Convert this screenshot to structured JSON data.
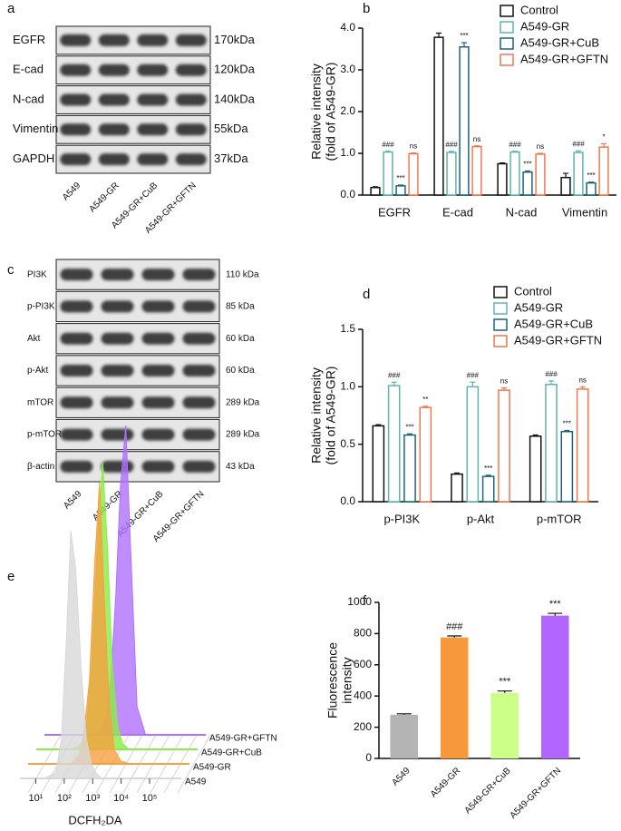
{
  "blots": [
    {
      "panel": "a",
      "rows": [
        {
          "label": "EGFR",
          "size": "170kDa"
        },
        {
          "label": "E-cad",
          "size": "120kDa"
        },
        {
          "label": "N-cad",
          "size": "140kDa"
        },
        {
          "label": "Vimentin",
          "size": "55kDa"
        },
        {
          "label": "GAPDH",
          "size": "37kDa"
        }
      ],
      "lanes": [
        "A549",
        "A549-GR",
        "A549-GR+CuB",
        "A549-GR+GFTN"
      ]
    },
    {
      "panel": "c",
      "rows": [
        {
          "label": "PI3K",
          "size": "110 kDa"
        },
        {
          "label": "p-PI3K",
          "size": "85 kDa"
        },
        {
          "label": "Akt",
          "size": "60 kDa"
        },
        {
          "label": "p-Akt",
          "size": "60 kDa"
        },
        {
          "label": "mTOR",
          "size": "289 kDa"
        },
        {
          "label": "p-mTOR",
          "size": "289 kDa"
        },
        {
          "label": "β-actin",
          "size": "43 kDa"
        }
      ],
      "lanes": [
        "A549",
        "A549-GR",
        "A549-GR+CuB",
        "A549-GR+GFTN"
      ]
    }
  ],
  "chart_data": [
    {
      "type": "bar",
      "panel": "b",
      "ylabel": [
        "Relative intensity",
        "(fold of A549-GR)"
      ],
      "categories": [
        "EGFR",
        "E-cad",
        "N-cad",
        "Vimentin"
      ],
      "series": [
        {
          "name": "Control",
          "color": "#111111",
          "values": [
            0.18,
            3.78,
            0.75,
            0.42
          ],
          "errors": [
            0.02,
            0.1,
            0.02,
            0.1
          ]
        },
        {
          "name": "A549-GR",
          "color": "#5fb3b3",
          "values": [
            1.03,
            1.02,
            1.03,
            1.02
          ],
          "errors": [
            0.02,
            0.03,
            0.02,
            0.04
          ],
          "annotations": [
            "###",
            "###",
            "###",
            "###"
          ]
        },
        {
          "name": "A549-GR+CuB",
          "color": "#1b6478",
          "values": [
            0.22,
            3.55,
            0.55,
            0.29
          ],
          "errors": [
            0.02,
            0.1,
            0.03,
            0.02
          ],
          "annotations": [
            "***",
            "***",
            "***",
            "***"
          ]
        },
        {
          "name": "A549-GR+GFTN",
          "color": "#f07850",
          "values": [
            0.99,
            1.16,
            0.98,
            1.15
          ],
          "errors": [
            0.02,
            0.02,
            0.02,
            0.08
          ],
          "annotations": [
            "ns",
            "ns",
            "ns",
            "*"
          ]
        }
      ],
      "ylim": [
        0,
        4
      ],
      "yticks": [
        {
          "value": 0,
          "label": "0.0"
        },
        {
          "value": 1,
          "label": "1.0"
        },
        {
          "value": 2,
          "label": "2.0"
        },
        {
          "value": 3,
          "label": "3.0"
        },
        {
          "value": 4,
          "label": "4.0"
        }
      ],
      "legend": "upper right"
    },
    {
      "type": "bar",
      "panel": "d",
      "ylabel": [
        "Relative intensity",
        "(fold of A549-GR)"
      ],
      "categories": [
        "p-PI3K",
        "p-Akt",
        "p-mTOR"
      ],
      "series": [
        {
          "name": "Control",
          "color": "#111111",
          "values": [
            0.66,
            0.24,
            0.57
          ],
          "errors": [
            0.01,
            0.01,
            0.01
          ]
        },
        {
          "name": "A549-GR",
          "color": "#5fb3b3",
          "values": [
            1.01,
            1.0,
            1.02
          ],
          "errors": [
            0.03,
            0.04,
            0.03
          ],
          "annotations": [
            "###",
            "###",
            "###"
          ]
        },
        {
          "name": "A549-GR+CuB",
          "color": "#1b6478",
          "values": [
            0.58,
            0.22,
            0.61
          ],
          "errors": [
            0.01,
            0.01,
            0.01
          ],
          "annotations": [
            "***",
            "***",
            "***"
          ]
        },
        {
          "name": "A549-GR+GFTN",
          "color": "#f07850",
          "values": [
            0.82,
            0.97,
            0.98
          ],
          "errors": [
            0.01,
            0.02,
            0.02
          ],
          "annotations": [
            "**",
            "ns",
            "ns"
          ]
        }
      ],
      "ylim": [
        0,
        1.5
      ],
      "yticks": [
        {
          "value": 0,
          "label": "0.0"
        },
        {
          "value": 0.5,
          "label": "0.5"
        },
        {
          "value": 1,
          "label": "1.0"
        },
        {
          "value": 1.5,
          "label": "1.5"
        }
      ],
      "legend": "upper right"
    },
    {
      "type": "ridgeline",
      "panel": "e",
      "xlabel": "DCFH₂DA",
      "log": true,
      "x": [
        20,
        50,
        80,
        120,
        170,
        250,
        400,
        600,
        900,
        1300,
        2000,
        3000,
        5000,
        10000
      ],
      "series": [
        {
          "name": "A549",
          "color": "#d8d8d8",
          "values": [
            0,
            2,
            14,
            50,
            88,
            75,
            38,
            14,
            5,
            2,
            0,
            0,
            0,
            0
          ]
        },
        {
          "name": "A549-GR",
          "color": "#f7a040",
          "values": [
            0,
            0,
            0,
            1,
            3,
            10,
            30,
            70,
            100,
            60,
            20,
            5,
            1,
            0
          ]
        },
        {
          "name": "A549-GR+CuB",
          "color": "#88ee44",
          "values": [
            0,
            0,
            1,
            3,
            10,
            30,
            75,
            102,
            70,
            30,
            8,
            2,
            0,
            0
          ]
        },
        {
          "name": "A549-GR+GFTN",
          "color": "#b070ff",
          "values": [
            0,
            0,
            0,
            0,
            1,
            2,
            6,
            20,
            50,
            88,
            110,
            65,
            10,
            0
          ]
        }
      ],
      "xlim": [
        5,
        300000
      ],
      "xticks": [
        {
          "value": 10,
          "label": "10¹"
        },
        {
          "value": 100,
          "label": "10²"
        },
        {
          "value": 1000,
          "label": "10³"
        },
        {
          "value": 10000,
          "label": "10⁴"
        },
        {
          "value": 100000,
          "label": "10⁵"
        }
      ]
    },
    {
      "type": "bar",
      "panel": "f",
      "ylabel": [
        "Fluorescence",
        "intensity"
      ],
      "categories": [
        "A549",
        "A549-GR",
        "A549-GR+CuB",
        "A549-GR+GFTN"
      ],
      "values": [
        280,
        775,
        420,
        915
      ],
      "errors": [
        6,
        10,
        12,
        15
      ],
      "colors": [
        "#b4b4b4",
        "#f7993a",
        "#ccff88",
        "#b266ff"
      ],
      "annotations": [
        null,
        "###",
        "***",
        "***"
      ],
      "ylim": [
        0,
        1000
      ],
      "yticks": [
        0,
        200,
        400,
        600,
        800,
        1000
      ]
    }
  ]
}
